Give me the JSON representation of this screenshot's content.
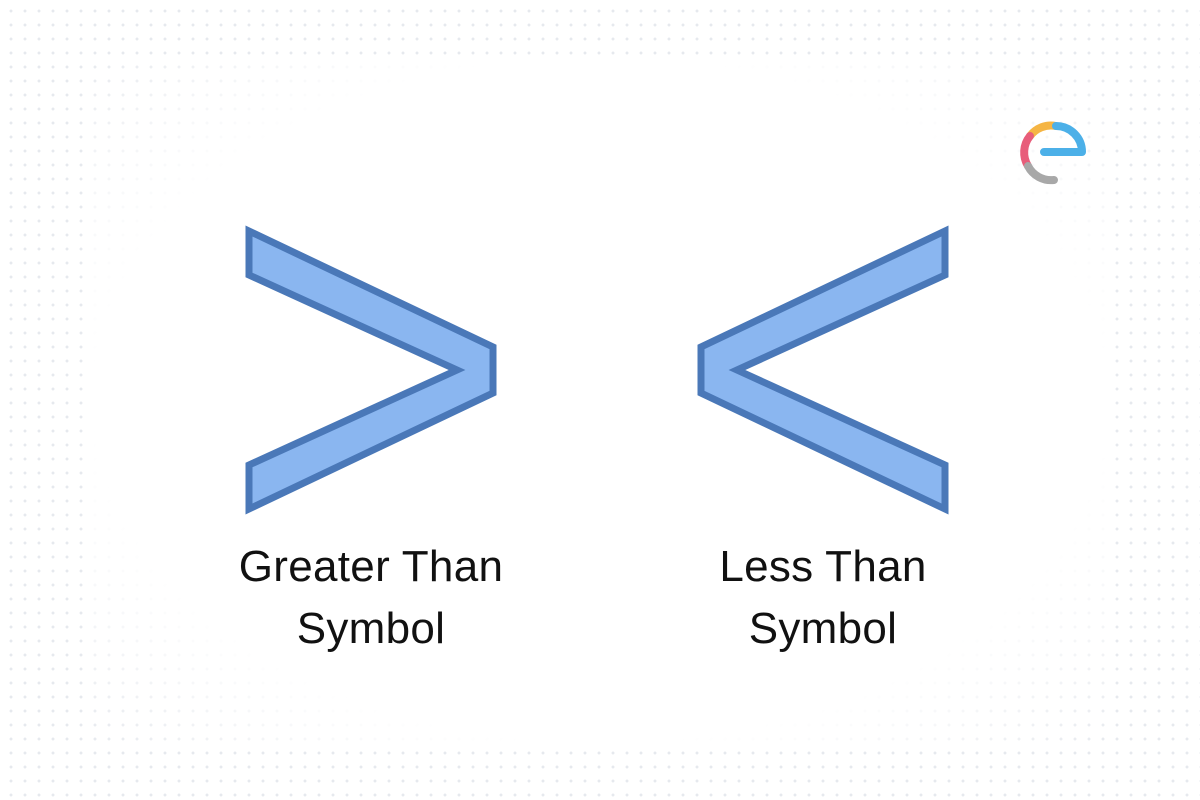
{
  "brand": {
    "logo_icon": "e-brand-logo-icon",
    "colors": {
      "orange": "#f5b544",
      "blue": "#4cb0e8",
      "pink": "#e85d7a",
      "gray": "#a8a8a8"
    }
  },
  "symbols": [
    {
      "icon": "greater-than-icon",
      "caption_line1": "Greater Than",
      "caption_line2": "Symbol"
    },
    {
      "icon": "less-than-icon",
      "caption_line1": "Less Than",
      "caption_line2": "Symbol"
    }
  ],
  "colors": {
    "symbol_fill": "#8ab6f0",
    "symbol_stroke": "#4a78b8",
    "dot_grid": "#e6e9ee"
  }
}
